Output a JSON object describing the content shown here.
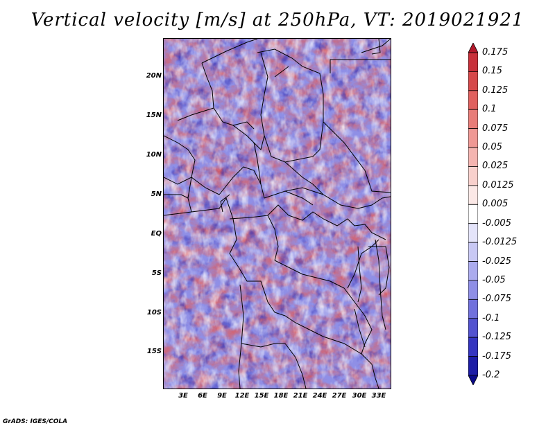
{
  "title": "Vertical velocity [m/s] at 250hPa, VT: 2019021921",
  "credit": "GrADS: IGES/COLA",
  "map": {
    "lat_labels": [
      "20N",
      "15N",
      "10N",
      "5N",
      "EQ",
      "5S",
      "10S",
      "15S"
    ],
    "lon_labels": [
      "3E",
      "6E",
      "9E",
      "12E",
      "15E",
      "18E",
      "21E",
      "24E",
      "27E",
      "30E",
      "33E"
    ]
  },
  "colorbar": {
    "levels": [
      "0.175",
      "0.15",
      "0.125",
      "0.1",
      "0.075",
      "0.05",
      "0.025",
      "0.0125",
      "0.005",
      "-0.005",
      "-0.0125",
      "-0.025",
      "-0.05",
      "-0.075",
      "-0.1",
      "-0.125",
      "-0.175",
      "-0.2"
    ],
    "colors": [
      "#b2182b",
      "#c8303a",
      "#d6484a",
      "#e0605e",
      "#e87c78",
      "#ef9894",
      "#f4b4b0",
      "#f8d0cc",
      "#fbe8e6",
      "#ffffff",
      "#e4e4fa",
      "#c8c8f4",
      "#ababee",
      "#8e8ee6",
      "#7070dc",
      "#5252d0",
      "#3434c0",
      "#1c1ca6",
      "#0a0a8a"
    ]
  }
}
